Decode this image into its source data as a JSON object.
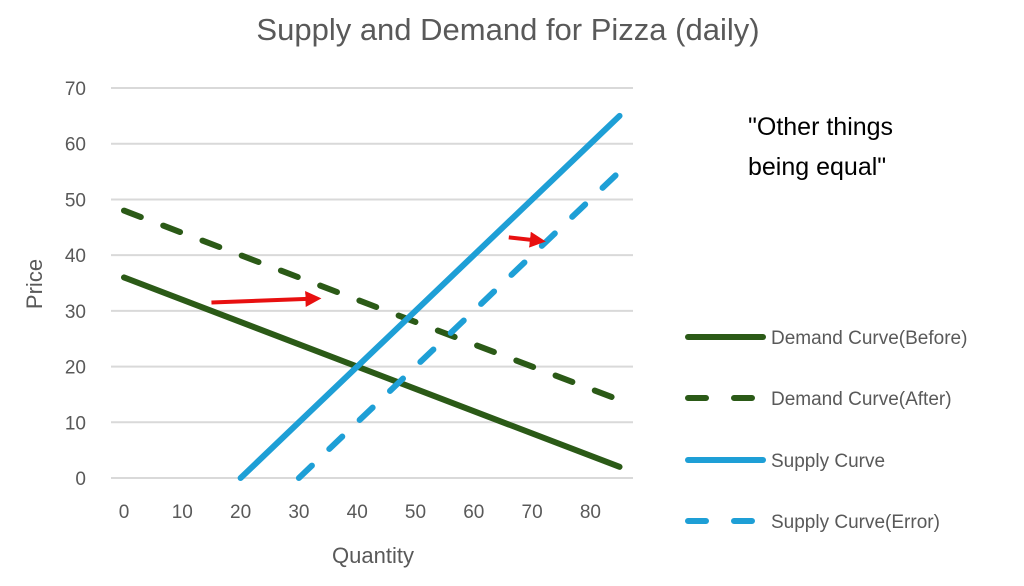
{
  "chart_data": {
    "type": "line",
    "title": "Supply and Demand for Pizza (daily)",
    "xlabel": "Quantity",
    "ylabel": "Price",
    "x_ticks": [
      "0",
      "10",
      "20",
      "30",
      "40",
      "50",
      "60",
      "70",
      "80"
    ],
    "y_ticks": [
      "0",
      "10",
      "20",
      "30",
      "40",
      "50",
      "60",
      "70"
    ],
    "xlim": [
      0,
      85
    ],
    "ylim": [
      0,
      70
    ],
    "grid": "horizontal",
    "legend_position": "right",
    "series": [
      {
        "name": "Demand Curve(Before)",
        "color": "#2b5a17",
        "style": "solid",
        "points": [
          [
            0,
            36
          ],
          [
            85,
            2
          ]
        ]
      },
      {
        "name": "Demand Curve(After)",
        "color": "#2b5a17",
        "style": "dashed",
        "points": [
          [
            0,
            48
          ],
          [
            85,
            14
          ]
        ]
      },
      {
        "name": "Supply Curve",
        "color": "#1e9fd6",
        "style": "solid",
        "points": [
          [
            20,
            0
          ],
          [
            85,
            65
          ]
        ]
      },
      {
        "name": "Supply Curve(Error)",
        "color": "#1e9fd6",
        "style": "dashed",
        "points": [
          [
            30,
            0
          ],
          [
            85,
            55
          ]
        ]
      }
    ],
    "annotations": [
      {
        "type": "text",
        "lines": [
          "\"Other things",
          "being equal\""
        ],
        "color": "#000000"
      },
      {
        "type": "arrow",
        "color": "#e81010",
        "from": [
          15,
          31.5
        ],
        "to": [
          34,
          32.2
        ]
      },
      {
        "type": "arrow",
        "color": "#e81010",
        "from": [
          66,
          43.2
        ],
        "to": [
          72.5,
          42.6
        ]
      }
    ]
  }
}
